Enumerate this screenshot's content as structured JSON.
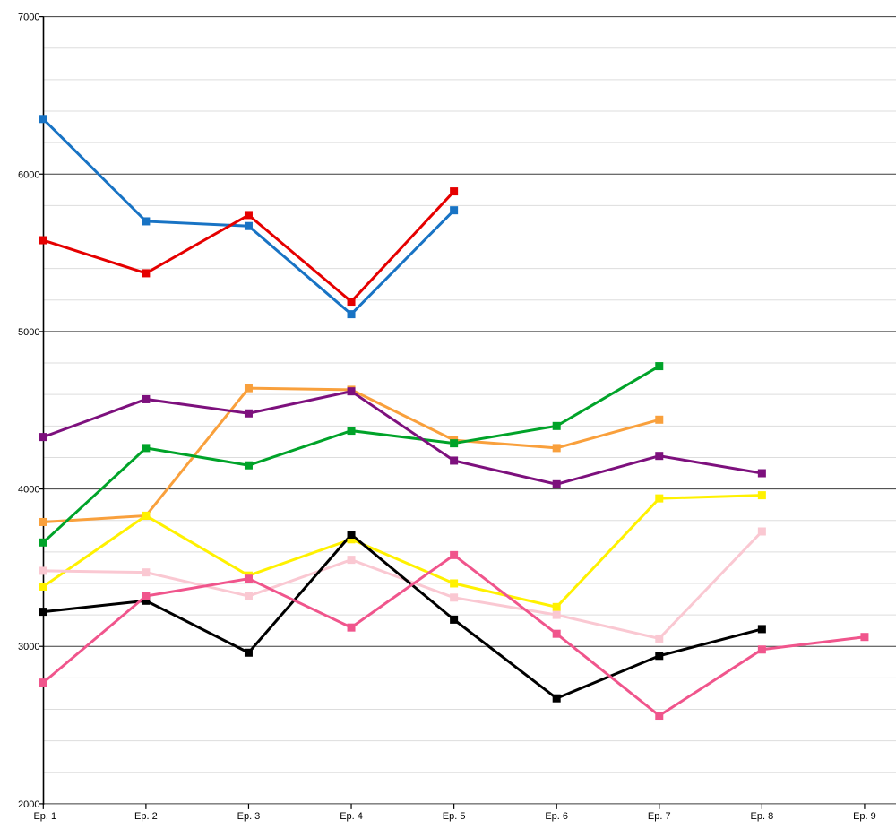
{
  "page": {
    "background_color": "#ffffff",
    "title": "",
    "legend": "none"
  },
  "chart_data": {
    "type": "line",
    "title": "",
    "xlabel": "",
    "ylabel": "",
    "categories": [
      "Ep. 1",
      "Ep. 2",
      "Ep. 3",
      "Ep. 4",
      "Ep. 5",
      "Ep. 6",
      "Ep. 7",
      "Ep. 8",
      "Ep. 9"
    ],
    "y_axis": {
      "min": 2000,
      "max": 7000,
      "major_step": 1000,
      "minor_step": 200,
      "major_tick_labels": [
        "2000",
        "3000",
        "4000",
        "5000",
        "6000",
        "7000"
      ]
    },
    "grid": {
      "show": true,
      "major_color": "#3c3c3c",
      "minor_color": "#dddddd"
    },
    "axis_color": "#000000",
    "marker_shape": "square",
    "series": [
      {
        "name": "orange",
        "color": "#F9A03C",
        "values": [
          3790,
          3830,
          4640,
          4630,
          4310,
          4260,
          4440
        ]
      },
      {
        "name": "green",
        "color": "#00A329",
        "values": [
          3660,
          4260,
          4150,
          4370,
          4290,
          4400,
          4780
        ]
      },
      {
        "name": "purple",
        "color": "#7D107D",
        "values": [
          4330,
          4570,
          4480,
          4620,
          4180,
          4030,
          4210,
          4100
        ]
      },
      {
        "name": "yellow",
        "color": "#FFF100",
        "values": [
          3380,
          3830,
          3450,
          3680,
          3400,
          3250,
          3940,
          3960
        ]
      },
      {
        "name": "light-pink",
        "color": "#FAC8D2",
        "values": [
          3480,
          3470,
          3320,
          3550,
          3310,
          3200,
          3050,
          3730
        ]
      },
      {
        "name": "black",
        "color": "#000000",
        "values": [
          3220,
          3290,
          2960,
          3710,
          3170,
          2670,
          2940,
          3110
        ]
      },
      {
        "name": "hot-pink",
        "color": "#F0558C",
        "values": [
          2770,
          3320,
          3430,
          3120,
          3580,
          3080,
          2560,
          2980,
          3060
        ]
      },
      {
        "name": "blue",
        "color": "#1873C4",
        "values": [
          6350,
          5700,
          5670,
          5110,
          5770
        ]
      },
      {
        "name": "red",
        "color": "#E50000",
        "values": [
          5580,
          5370,
          5740,
          5190,
          5890
        ]
      }
    ]
  }
}
